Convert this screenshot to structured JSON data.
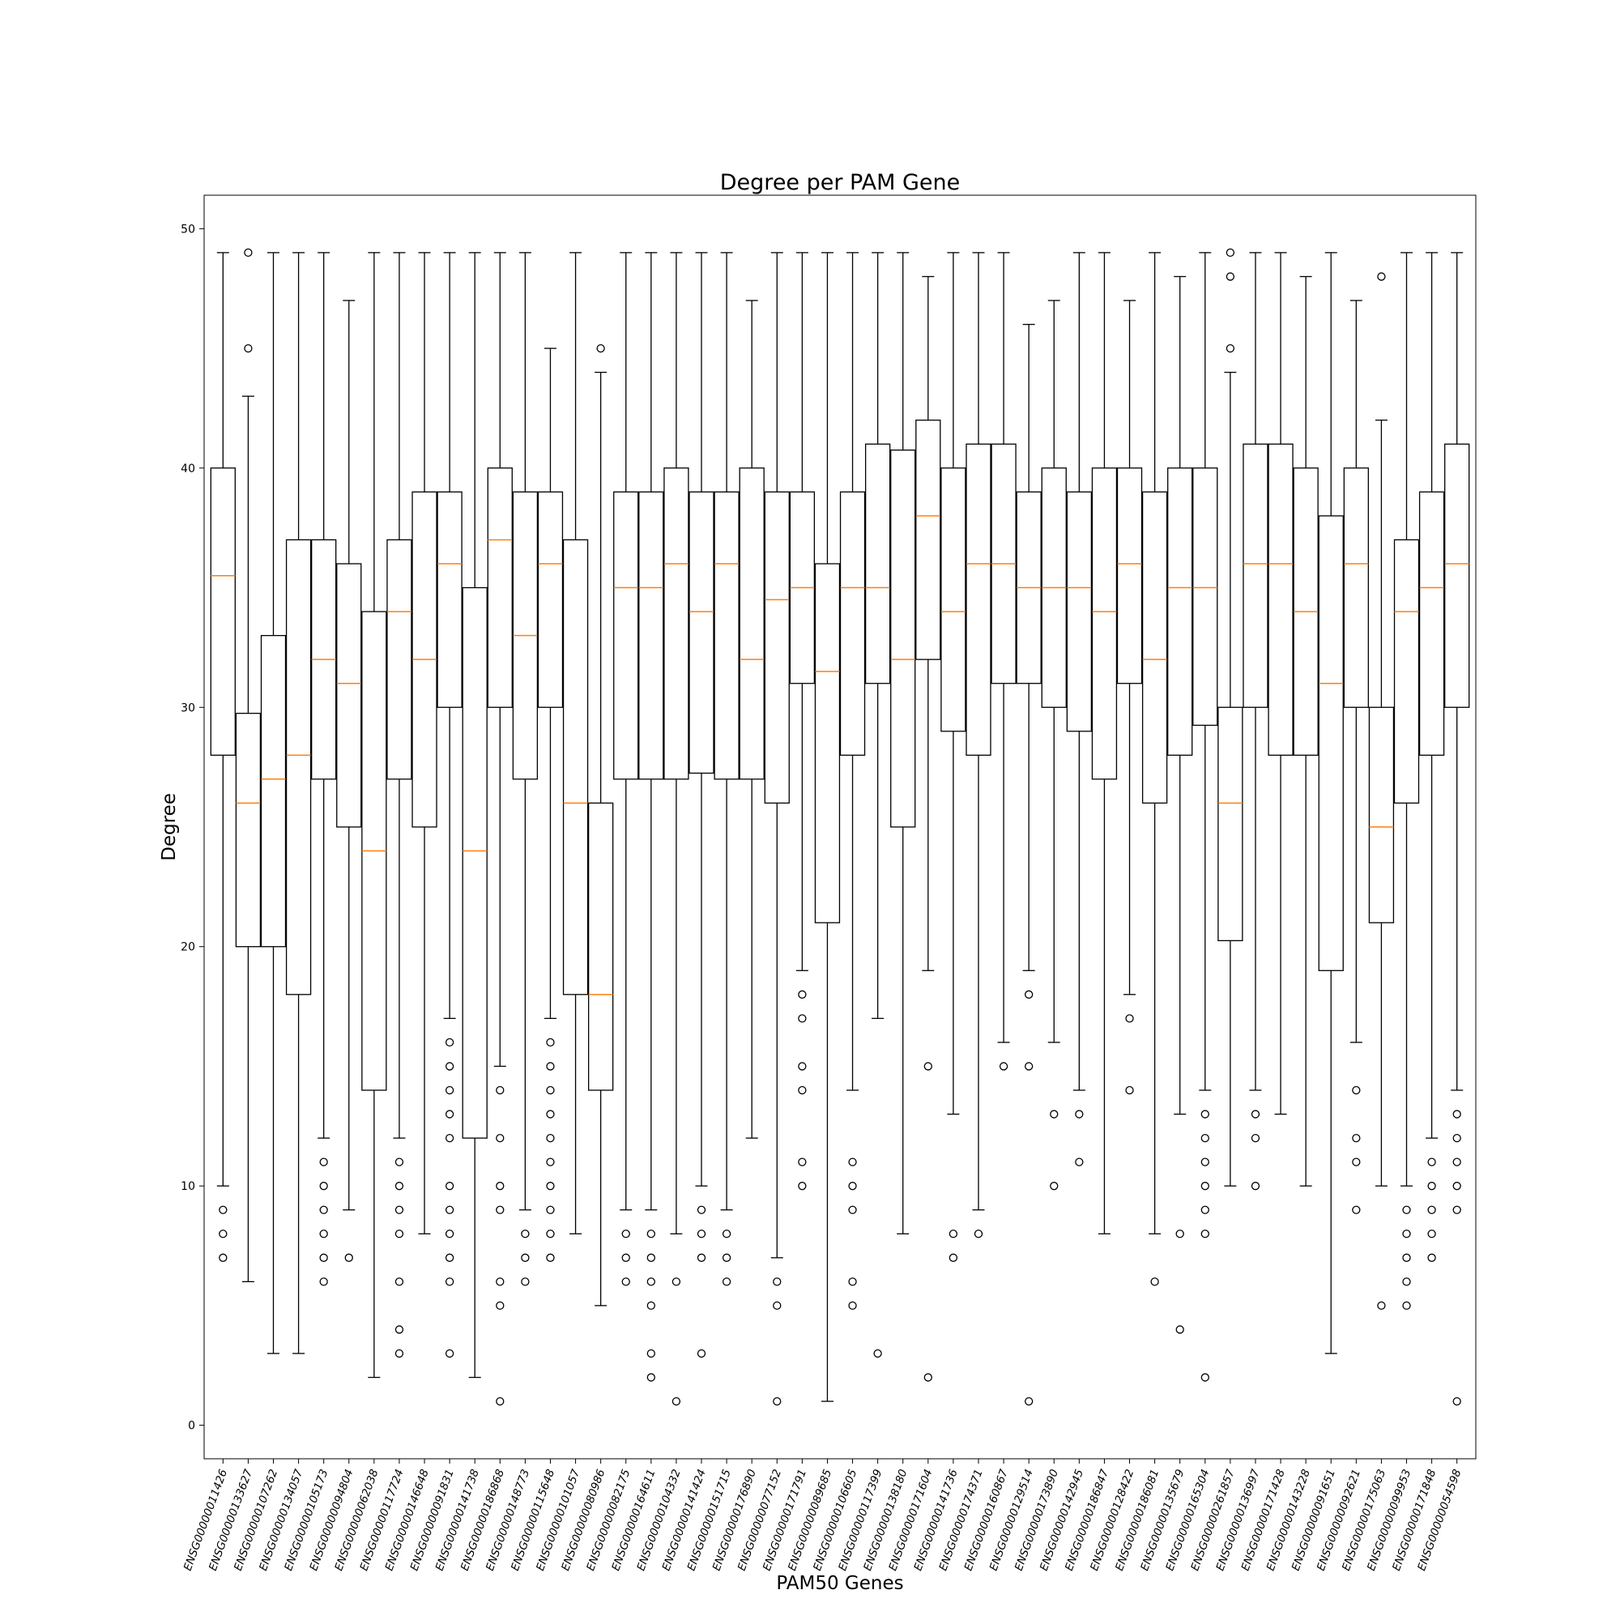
{
  "chart_data": {
    "type": "box",
    "title": "Degree per PAM Gene",
    "xlabel": "PAM50 Genes",
    "ylabel": "Degree",
    "ylim": [
      -1.4,
      51.4
    ],
    "yticks": [
      0,
      10,
      20,
      30,
      40,
      50
    ],
    "grid": false,
    "legend": "none",
    "colors": {
      "box": "#000000",
      "median": "#ff7f0e",
      "background": "#ffffff"
    },
    "categories": [
      "ENSG00000011426",
      "ENSG00000133627",
      "ENSG00000107262",
      "ENSG00000134057",
      "ENSG00000105173",
      "ENSG00000094804",
      "ENSG00000062038",
      "ENSG00000117724",
      "ENSG00000146648",
      "ENSG00000091831",
      "ENSG00000141738",
      "ENSG00000186868",
      "ENSG00000148773",
      "ENSG00000115648",
      "ENSG00000101057",
      "ENSG00000080986",
      "ENSG00000082175",
      "ENSG00000164611",
      "ENSG00000104332",
      "ENSG00000141424",
      "ENSG00000151715",
      "ENSG00000176890",
      "ENSG00000077152",
      "ENSG00000171791",
      "ENSG00000089685",
      "ENSG00000106605",
      "ENSG00000117399",
      "ENSG00000138180",
      "ENSG00000171604",
      "ENSG00000141736",
      "ENSG00000174371",
      "ENSG00000160867",
      "ENSG00000129514",
      "ENSG00000173890",
      "ENSG00000142945",
      "ENSG00000186847",
      "ENSG00000128422",
      "ENSG00000186081",
      "ENSG00000135679",
      "ENSG00000165304",
      "ENSG00000261857",
      "ENSG00000136997",
      "ENSG00000171428",
      "ENSG00000143228",
      "ENSG00000091651",
      "ENSG00000092621",
      "ENSG00000175063",
      "ENSG00000099953",
      "ENSG00000171848",
      "ENSG00000054598"
    ],
    "boxes": [
      {
        "whislo": 10,
        "q1": 28,
        "med": 35.5,
        "q3": 40,
        "whishi": 49,
        "fliers": [
          9,
          8,
          7
        ]
      },
      {
        "whislo": 6,
        "q1": 20,
        "med": 26,
        "q3": 29.75,
        "whishi": 43,
        "fliers": [
          49,
          45
        ]
      },
      {
        "whislo": 3,
        "q1": 20,
        "med": 27,
        "q3": 33,
        "whishi": 49,
        "fliers": []
      },
      {
        "whislo": 3,
        "q1": 18,
        "med": 28,
        "q3": 37,
        "whishi": 49,
        "fliers": []
      },
      {
        "whislo": 12,
        "q1": 27,
        "med": 32,
        "q3": 37,
        "whishi": 49,
        "fliers": [
          11,
          10,
          9,
          8,
          7,
          6
        ]
      },
      {
        "whislo": 9,
        "q1": 25,
        "med": 31,
        "q3": 36,
        "whishi": 47,
        "fliers": [
          7
        ]
      },
      {
        "whislo": 2,
        "q1": 14,
        "med": 24,
        "q3": 34,
        "whishi": 49,
        "fliers": []
      },
      {
        "whislo": 12,
        "q1": 27,
        "med": 34,
        "q3": 37,
        "whishi": 49,
        "fliers": [
          11,
          10,
          9,
          8,
          6,
          4,
          3
        ]
      },
      {
        "whislo": 8,
        "q1": 25,
        "med": 32,
        "q3": 39,
        "whishi": 49,
        "fliers": []
      },
      {
        "whislo": 17,
        "q1": 30,
        "med": 36,
        "q3": 39,
        "whishi": 49,
        "fliers": [
          16,
          15,
          14,
          13,
          12,
          10,
          9,
          8,
          7,
          6,
          3
        ]
      },
      {
        "whislo": 2,
        "q1": 12,
        "med": 24,
        "q3": 35,
        "whishi": 49,
        "fliers": []
      },
      {
        "whislo": 15,
        "q1": 30,
        "med": 37,
        "q3": 40,
        "whishi": 49,
        "fliers": [
          14,
          12,
          10,
          9,
          6,
          5,
          1
        ]
      },
      {
        "whislo": 9,
        "q1": 27,
        "med": 33,
        "q3": 39,
        "whishi": 49,
        "fliers": [
          8,
          7,
          6
        ]
      },
      {
        "whislo": 17,
        "q1": 30,
        "med": 36,
        "q3": 39,
        "whishi": 45,
        "fliers": [
          16,
          15,
          14,
          13,
          12,
          11,
          10,
          9,
          8,
          7
        ]
      },
      {
        "whislo": 8,
        "q1": 18,
        "med": 26,
        "q3": 37,
        "whishi": 49,
        "fliers": []
      },
      {
        "whislo": 5,
        "q1": 14,
        "med": 18,
        "q3": 26,
        "whishi": 44,
        "fliers": [
          45
        ]
      },
      {
        "whislo": 9,
        "q1": 27,
        "med": 35,
        "q3": 39,
        "whishi": 49,
        "fliers": [
          8,
          7,
          6
        ]
      },
      {
        "whislo": 9,
        "q1": 27,
        "med": 35,
        "q3": 39,
        "whishi": 49,
        "fliers": [
          8,
          7,
          6,
          5,
          3,
          2
        ]
      },
      {
        "whislo": 8,
        "q1": 27,
        "med": 36,
        "q3": 40,
        "whishi": 49,
        "fliers": [
          6,
          1
        ]
      },
      {
        "whislo": 10,
        "q1": 27.25,
        "med": 34,
        "q3": 39,
        "whishi": 49,
        "fliers": [
          9,
          8,
          7,
          3
        ]
      },
      {
        "whislo": 9,
        "q1": 27,
        "med": 36,
        "q3": 39,
        "whishi": 49,
        "fliers": [
          8,
          7,
          6
        ]
      },
      {
        "whislo": 12,
        "q1": 27,
        "med": 32,
        "q3": 40,
        "whishi": 47,
        "fliers": []
      },
      {
        "whislo": 7,
        "q1": 26,
        "med": 34.5,
        "q3": 39,
        "whishi": 49,
        "fliers": [
          6,
          5,
          1
        ]
      },
      {
        "whislo": 19,
        "q1": 31,
        "med": 35,
        "q3": 39,
        "whishi": 49,
        "fliers": [
          18,
          17,
          15,
          14,
          11,
          10
        ]
      },
      {
        "whislo": 1,
        "q1": 21,
        "med": 31.5,
        "q3": 36,
        "whishi": 49,
        "fliers": []
      },
      {
        "whislo": 14,
        "q1": 28,
        "med": 35,
        "q3": 39,
        "whishi": 49,
        "fliers": [
          11,
          10,
          9,
          6,
          5
        ]
      },
      {
        "whislo": 17,
        "q1": 31,
        "med": 35,
        "q3": 41,
        "whishi": 49,
        "fliers": [
          3
        ]
      },
      {
        "whislo": 8,
        "q1": 25,
        "med": 32,
        "q3": 40.75,
        "whishi": 49,
        "fliers": []
      },
      {
        "whislo": 19,
        "q1": 32,
        "med": 38,
        "q3": 42,
        "whishi": 48,
        "fliers": [
          15,
          2
        ]
      },
      {
        "whislo": 13,
        "q1": 29,
        "med": 34,
        "q3": 40,
        "whishi": 49,
        "fliers": [
          8,
          7
        ]
      },
      {
        "whislo": 9,
        "q1": 28,
        "med": 36,
        "q3": 41,
        "whishi": 49,
        "fliers": [
          8
        ]
      },
      {
        "whislo": 16,
        "q1": 31,
        "med": 36,
        "q3": 41,
        "whishi": 49,
        "fliers": [
          15
        ]
      },
      {
        "whislo": 19,
        "q1": 31,
        "med": 35,
        "q3": 39,
        "whishi": 46,
        "fliers": [
          18,
          15,
          1
        ]
      },
      {
        "whislo": 16,
        "q1": 30,
        "med": 35,
        "q3": 40,
        "whishi": 47,
        "fliers": [
          13,
          10
        ]
      },
      {
        "whislo": 14,
        "q1": 29,
        "med": 35,
        "q3": 39,
        "whishi": 49,
        "fliers": [
          13,
          11
        ]
      },
      {
        "whislo": 8,
        "q1": 27,
        "med": 34,
        "q3": 40,
        "whishi": 49,
        "fliers": []
      },
      {
        "whislo": 18,
        "q1": 31,
        "med": 36,
        "q3": 40,
        "whishi": 47,
        "fliers": [
          17,
          14
        ]
      },
      {
        "whislo": 8,
        "q1": 26,
        "med": 32,
        "q3": 39,
        "whishi": 49,
        "fliers": [
          6
        ]
      },
      {
        "whislo": 13,
        "q1": 28,
        "med": 35,
        "q3": 40,
        "whishi": 48,
        "fliers": [
          8,
          4
        ]
      },
      {
        "whislo": 14,
        "q1": 29.25,
        "med": 35,
        "q3": 40,
        "whishi": 49,
        "fliers": [
          13,
          12,
          11,
          10,
          9,
          8,
          2
        ]
      },
      {
        "whislo": 10,
        "q1": 20.25,
        "med": 26,
        "q3": 30,
        "whishi": 44,
        "fliers": [
          49,
          48,
          45
        ]
      },
      {
        "whislo": 14,
        "q1": 30,
        "med": 36,
        "q3": 41,
        "whishi": 49,
        "fliers": [
          13,
          12,
          10
        ]
      },
      {
        "whislo": 13,
        "q1": 28,
        "med": 36,
        "q3": 41,
        "whishi": 49,
        "fliers": []
      },
      {
        "whislo": 10,
        "q1": 28,
        "med": 34,
        "q3": 40,
        "whishi": 48,
        "fliers": []
      },
      {
        "whislo": 3,
        "q1": 19,
        "med": 31,
        "q3": 38,
        "whishi": 49,
        "fliers": []
      },
      {
        "whislo": 16,
        "q1": 30,
        "med": 36,
        "q3": 40,
        "whishi": 47,
        "fliers": [
          14,
          12,
          11,
          9
        ]
      },
      {
        "whislo": 10,
        "q1": 21,
        "med": 25,
        "q3": 30,
        "whishi": 42,
        "fliers": [
          48,
          5
        ]
      },
      {
        "whislo": 10,
        "q1": 26,
        "med": 34,
        "q3": 37,
        "whishi": 49,
        "fliers": [
          9,
          8,
          7,
          6,
          5
        ]
      },
      {
        "whislo": 12,
        "q1": 28,
        "med": 35,
        "q3": 39,
        "whishi": 49,
        "fliers": [
          11,
          10,
          9,
          8,
          7
        ]
      },
      {
        "whislo": 14,
        "q1": 30,
        "med": 36,
        "q3": 41,
        "whishi": 49,
        "fliers": [
          13,
          12,
          11,
          10,
          9,
          1
        ]
      }
    ]
  }
}
